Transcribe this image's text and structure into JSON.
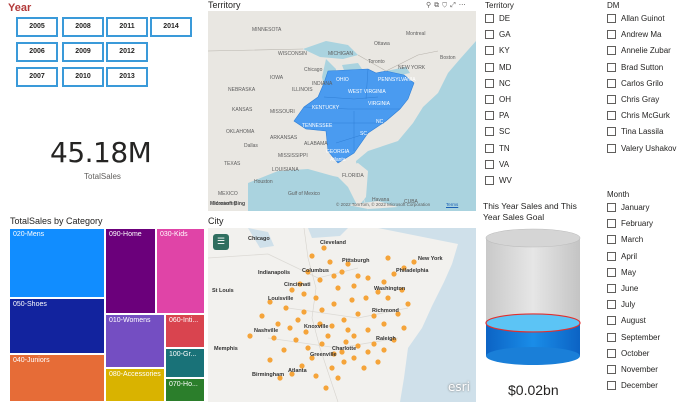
{
  "year_slicer": {
    "title": "Year",
    "years": [
      "2005",
      "2008",
      "2011",
      "2014",
      "2006",
      "2009",
      "2012",
      "2007",
      "2010",
      "2013"
    ]
  },
  "kpi": {
    "value": "45.18M",
    "label": "TotalSales"
  },
  "treemap": {
    "title": "TotalSales by Category",
    "tiles": [
      {
        "label": "020-Mens",
        "color": "#118dff"
      },
      {
        "label": "050-Shoes",
        "color": "#12239e"
      },
      {
        "label": "040-Juniors",
        "color": "#e66c37"
      },
      {
        "label": "090-Home",
        "color": "#6b007b"
      },
      {
        "label": "030-Kids",
        "color": "#e044a7"
      },
      {
        "label": "010-Womens",
        "color": "#744ec2"
      },
      {
        "label": "060-Inti...",
        "color": "#d9444f"
      },
      {
        "label": "100-Gr...",
        "color": "#197278"
      },
      {
        "label": "080-Accessories",
        "color": "#d9b300"
      },
      {
        "label": "070-Ho...",
        "color": "#2b7e2b"
      }
    ]
  },
  "territory_map": {
    "title": "Territory",
    "highlight_color": "#4a9bf0",
    "places": [
      "MINNESOTA",
      "Ottawa",
      "Montreal",
      "WISCONSIN",
      "MICHIGAN",
      "Toronto",
      "NEW YORK",
      "IOWA",
      "OHIO",
      "PENNSYLVANIA",
      "NEBRASKA",
      "ILLINOIS",
      "WEST VIRGINIA",
      "INDIANA",
      "VIRGINIA",
      "KANSAS",
      "MISSOURI",
      "KENTUCKY",
      "OKLAHOMA",
      "TENNESSEE",
      "NC",
      "ARKANSAS",
      "SC",
      "MISSISSIPPI",
      "ALABAMA",
      "GEORGIA",
      "TEXAS",
      "LOUISIANA",
      "FLORIDA",
      "Gulf of Mexico",
      "MEXICO",
      "Havana",
      "CUBA",
      "Monterrey",
      "Houston",
      "Dallas",
      "Atlanta",
      "Chicago",
      "Boston"
    ],
    "attribution": "© 2022 TomTom, © 2022 Microsoft Corporation",
    "terms": "Terms",
    "logo": "Microsoft Bing"
  },
  "city_map": {
    "title": "City",
    "dot_color": "#f5a43a",
    "cities": [
      "Chicago",
      "Cleveland",
      "Pittsburgh",
      "Indianapolis",
      "Columbus",
      "New York",
      "Philadelphia",
      "St Louis",
      "Cincinnati",
      "Washington",
      "Louisville",
      "Nashville",
      "Richmond",
      "Knoxville",
      "Charlotte",
      "Raleigh",
      "Memphis",
      "Greenville",
      "Atlanta",
      "Birmingham"
    ],
    "logo": "esri",
    "menu_icon": "layers-menu-icon"
  },
  "territory_slicer": {
    "title": "Territory",
    "items": [
      "DE",
      "GA",
      "KY",
      "MD",
      "NC",
      "OH",
      "PA",
      "SC",
      "TN",
      "VA",
      "WV"
    ]
  },
  "dm_slicer": {
    "title": "DM",
    "items": [
      "Allan Guinot",
      "Andrew Ma",
      "Annelie Zubar",
      "Brad Sutton",
      "Carlos Grilo",
      "Chris Gray",
      "Chris McGurk",
      "Tina Lassila",
      "Valery Ushakov"
    ]
  },
  "month_slicer": {
    "title": "Month",
    "items": [
      "January",
      "February",
      "March",
      "April",
      "May",
      "June",
      "July",
      "August",
      "September",
      "October",
      "November",
      "December"
    ]
  },
  "gauge": {
    "title": "This Year Sales and This Year Sales Goal",
    "value": "$0.02bn",
    "fill_fraction": 0.28,
    "fill_color": "#1a7fd8",
    "goal_line_color": "#e0302f"
  }
}
